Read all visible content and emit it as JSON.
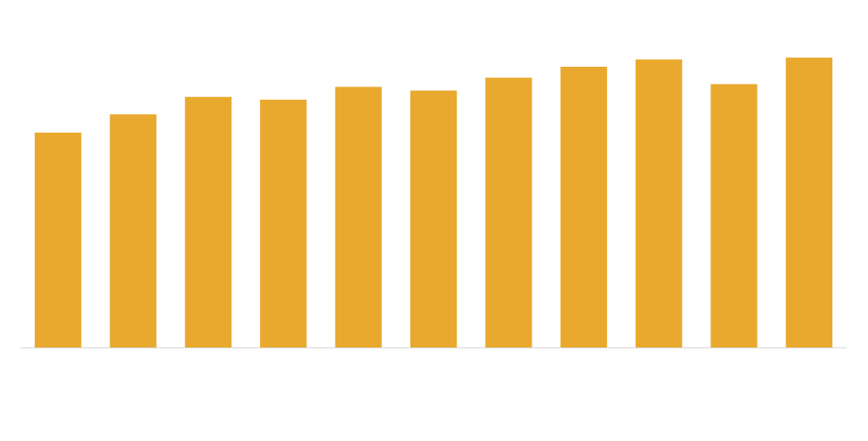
{
  "chart_data": {
    "type": "bar",
    "categories": [
      "",
      "",
      "",
      "",
      "",
      "",
      "",
      "",
      "",
      "",
      ""
    ],
    "values": [
      235,
      255,
      274,
      271,
      285,
      281,
      295,
      307,
      315,
      288,
      317
    ],
    "ylim": [
      0,
      380
    ],
    "grid": false,
    "legend": "none",
    "colors": {
      "bar": "#E8A92E",
      "axis": "#D9D9D9",
      "background": "#FFFFFF"
    }
  }
}
